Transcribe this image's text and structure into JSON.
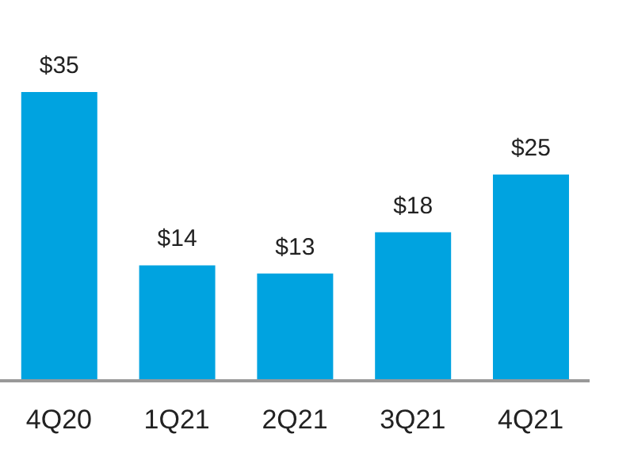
{
  "chart_data": {
    "type": "bar",
    "categories": [
      "4Q20",
      "1Q21",
      "2Q21",
      "3Q21",
      "4Q21"
    ],
    "values": [
      35,
      14,
      13,
      18,
      25
    ],
    "value_labels": [
      "$35",
      "$14",
      "$13",
      "$18",
      "$25"
    ],
    "color": "#00a3e0"
  }
}
